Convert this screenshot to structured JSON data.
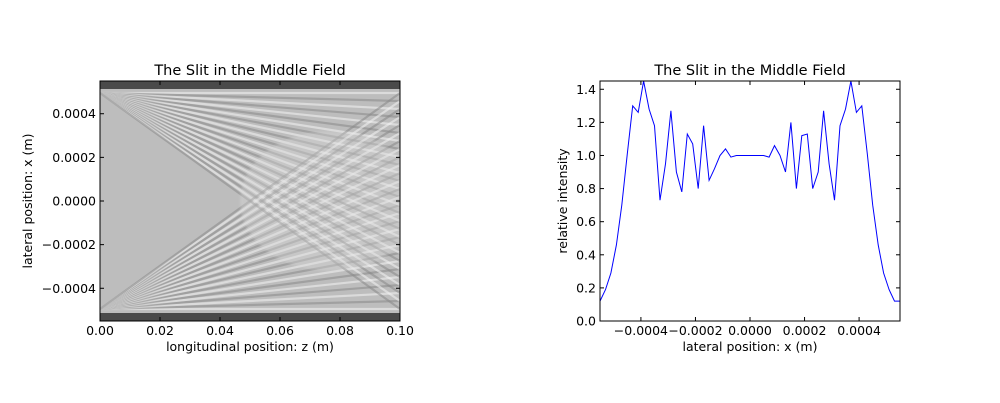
{
  "chart_data": [
    {
      "type": "heatmap",
      "title": "The Slit in the Middle Field",
      "xlabel": "longitudinal position: z (m)",
      "ylabel": "lateral position: x (m)",
      "xlim": [
        0.0,
        0.1
      ],
      "ylim": [
        -0.00055,
        0.00055
      ],
      "xticks": [
        "0.00",
        "0.02",
        "0.04",
        "0.06",
        "0.08",
        "0.10"
      ],
      "xtick_values": [
        0.0,
        0.02,
        0.04,
        0.06,
        0.08,
        0.1
      ],
      "yticks": [
        "0.0004",
        "0.0002",
        "0.0000",
        "−0.0002",
        "−0.0004"
      ],
      "ytick_values": [
        0.0004,
        0.0002,
        0.0,
        -0.0002,
        -0.0004
      ],
      "colormap": "gray",
      "grid": false
    },
    {
      "type": "line",
      "title": "The Slit in the Middle Field",
      "xlabel": "lateral position: x (m)",
      "ylabel": "relative intensity",
      "xlim": [
        -0.00055,
        0.00055
      ],
      "ylim": [
        0.0,
        1.45
      ],
      "xticks": [
        "−0.0004",
        "−0.0002",
        "0.0000",
        "0.0002",
        "0.0004"
      ],
      "xtick_values": [
        -0.0004,
        -0.0002,
        0.0,
        0.0002,
        0.0004
      ],
      "yticks": [
        "0.0",
        "0.2",
        "0.4",
        "0.6",
        "0.8",
        "1.0",
        "1.2",
        "1.4"
      ],
      "ytick_values": [
        0.0,
        0.2,
        0.4,
        0.6,
        0.8,
        1.0,
        1.2,
        1.4
      ],
      "grid": false,
      "line_color": "#0000ff",
      "series": [
        {
          "x": [
            -0.00055,
            -0.00053,
            -0.00051,
            -0.00049,
            -0.00047,
            -0.00045,
            -0.00043,
            -0.00041,
            -0.00039,
            -0.00037,
            -0.00035,
            -0.00033,
            -0.00031,
            -0.00029,
            -0.00027,
            -0.00025,
            -0.00023,
            -0.00021,
            -0.00019,
            -0.00017,
            -0.00015,
            -0.00013,
            -0.00011,
            -9e-05,
            -7e-05,
            -5e-05,
            -3e-05,
            -1e-05,
            1e-05,
            3e-05,
            5e-05,
            7e-05,
            9e-05,
            0.00011,
            0.00013,
            0.00015,
            0.00017,
            0.00019,
            0.00021,
            0.00023,
            0.00025,
            0.00027,
            0.00029,
            0.00031,
            0.00033,
            0.00035,
            0.00037,
            0.00039,
            0.00041,
            0.00043,
            0.00045,
            0.00047,
            0.00049,
            0.00051,
            0.00053,
            0.00055
          ],
          "y": [
            0.12,
            0.19,
            0.29,
            0.46,
            0.7,
            1.01,
            1.3,
            1.26,
            1.45,
            1.28,
            1.18,
            0.73,
            0.95,
            1.27,
            0.9,
            0.78,
            1.13,
            1.07,
            0.8,
            1.18,
            0.85,
            0.92,
            1.0,
            1.04,
            0.99,
            1.0,
            1.0,
            1.0,
            1.0,
            1.0,
            1.0,
            0.99,
            1.06,
            1.0,
            0.9,
            1.2,
            0.8,
            1.12,
            1.13,
            0.8,
            0.9,
            1.27,
            0.95,
            0.73,
            1.18,
            1.28,
            1.45,
            1.26,
            1.3,
            1.01,
            0.7,
            0.46,
            0.29,
            0.19,
            0.12,
            0.12
          ]
        }
      ]
    }
  ]
}
